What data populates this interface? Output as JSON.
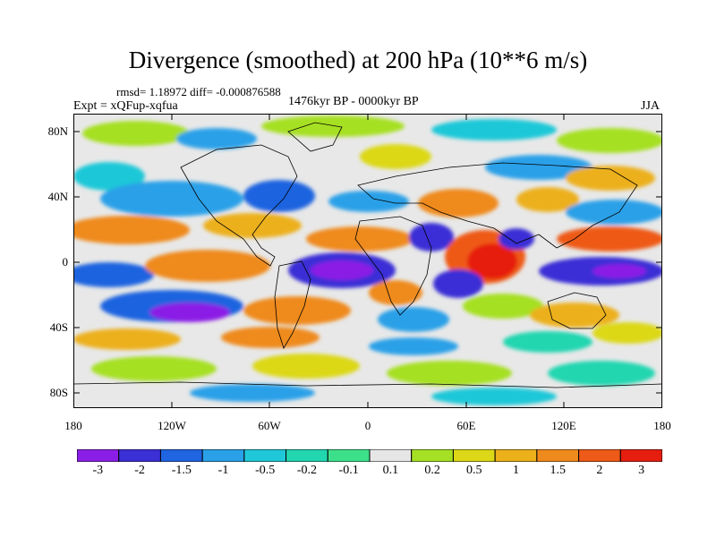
{
  "title": "Divergence (smoothed) at 200 hPa (10**6 m/s)",
  "stats": "rmsd= 1.18972 diff= -0.000876588",
  "experiment": "Expt = xQFup-xqfua",
  "period": "1476kyr BP - 0000kyr BP",
  "season": "JJA",
  "map": {
    "lat_labels": [
      "80N",
      "40N",
      "0",
      "40S",
      "80S"
    ],
    "lon_labels": [
      "180",
      "120W",
      "60W",
      "0",
      "60E",
      "120E",
      "180"
    ],
    "colors": {
      "background": "#e8e8e8",
      "coastline": "#000000"
    }
  },
  "colorbar": {
    "labels": [
      "-3",
      "-2",
      "-1.5",
      "-1",
      "-0.5",
      "-0.2",
      "-0.1",
      "0.1",
      "0.2",
      "0.5",
      "1",
      "1.5",
      "2",
      "3"
    ],
    "colors": [
      "#8b1ee6",
      "#3b2fd6",
      "#1f64e0",
      "#2aa0e8",
      "#1fc8d8",
      "#22d6b0",
      "#3ce08a",
      "#e6e6e6",
      "#a6e024",
      "#dcd818",
      "#ecb01a",
      "#ef8a1c",
      "#ee5a18",
      "#e61e10"
    ]
  }
}
